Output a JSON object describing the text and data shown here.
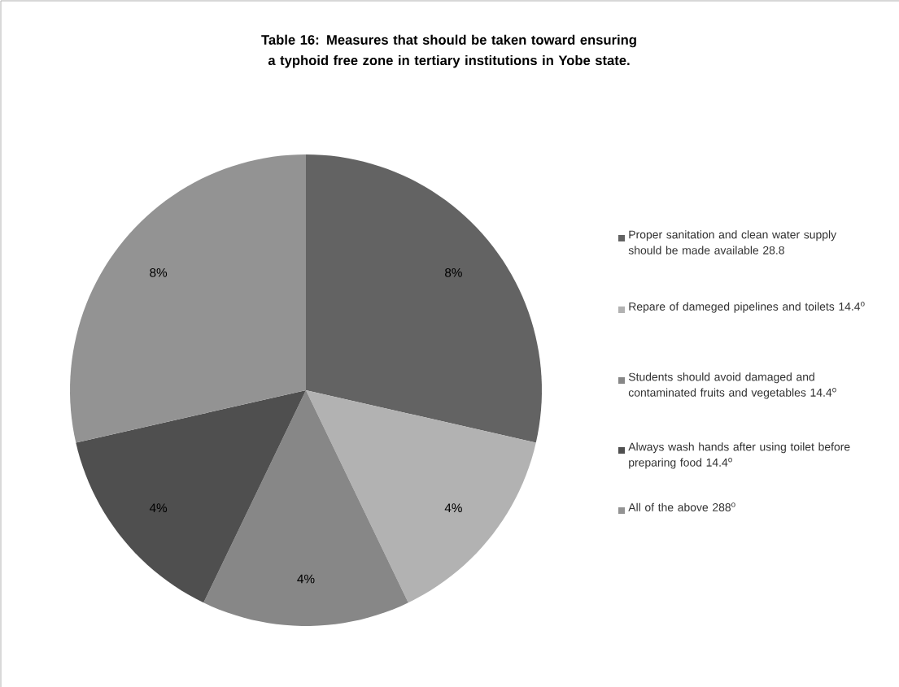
{
  "chart_data": {
    "type": "pie",
    "title": "Table 16: Measures that should be taken toward ensuring a typhoid free zone in tertiary institutions in Yobe state.",
    "categories": [
      "Proper sanitation and clean water supply should be made available 28.8",
      "Repare of dameged pipelines and toilets 14.4$^{o}$",
      "Students should avoid damaged and contaminated fruits and vegetables 14.4$^{o}$",
      "Always wash hands after using toilet before preparing food 14.4$^{o}$",
      "All of the above 288$^{o}$"
    ],
    "values": [
      8,
      4,
      4,
      4,
      8
    ],
    "value_labels": [
      "8%",
      "4%",
      "4%",
      "4%",
      "8%"
    ],
    "colors": [
      "#636363",
      "#b2b2b2",
      "#878787",
      "#4f4f4f",
      "#939393"
    ],
    "legend": "right"
  }
}
